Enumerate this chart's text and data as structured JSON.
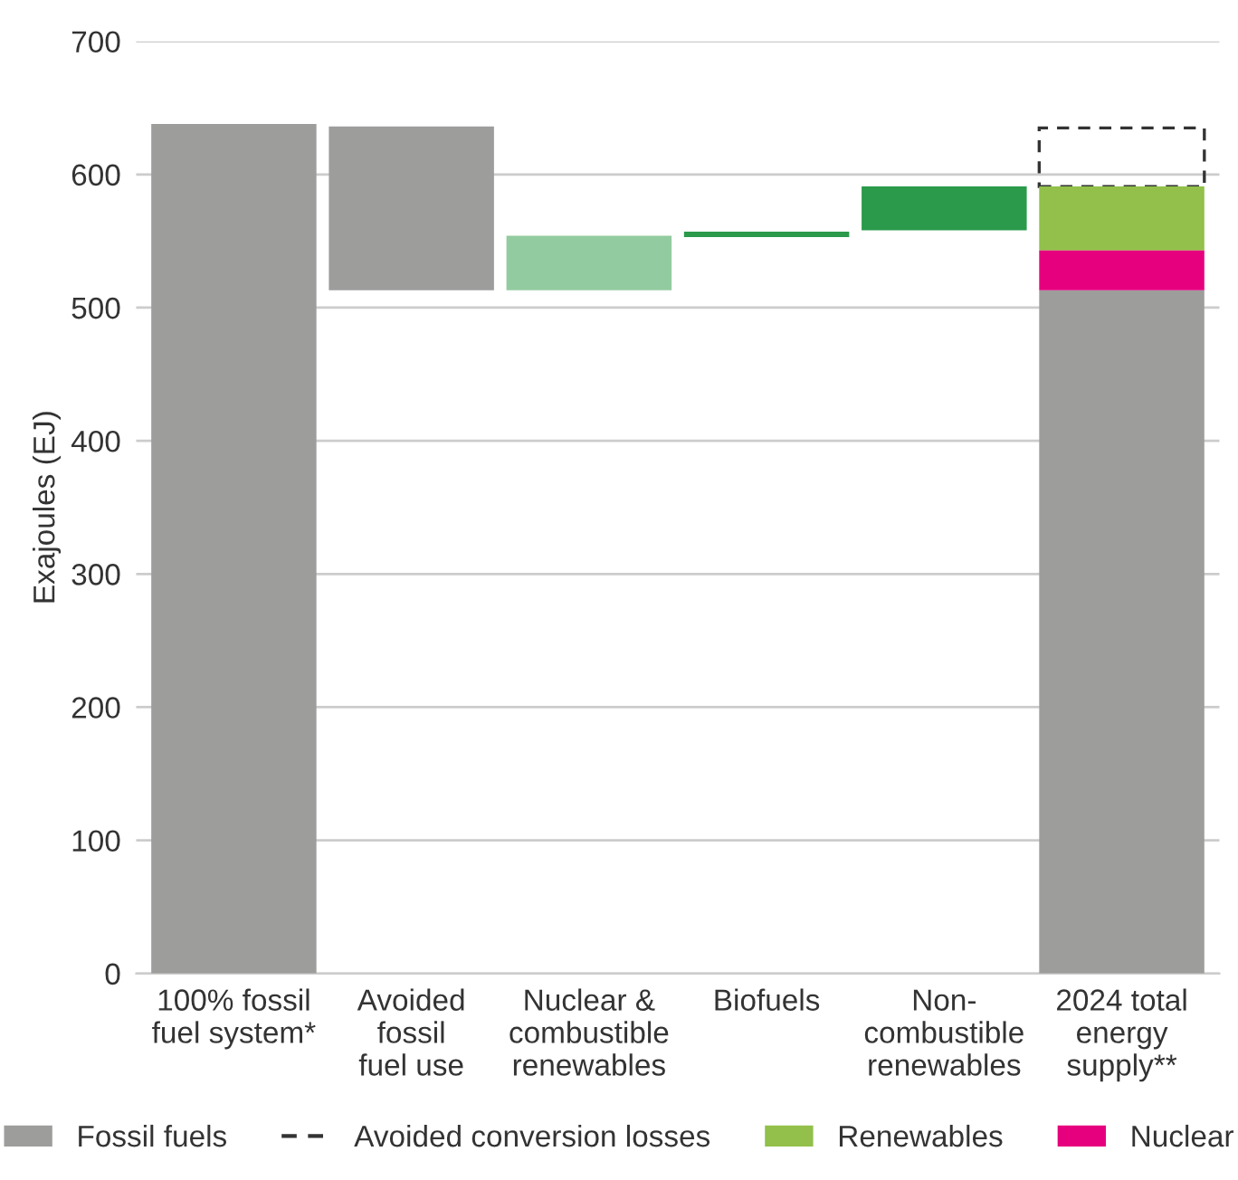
{
  "chart_data": {
    "type": "bar",
    "ylabel": "Exajoules (EJ)",
    "categories": [
      "100% fossil\nfuel system*",
      "Avoided\nfossil\nfuel use",
      "Nuclear &\ncombustible\nrenewables",
      "Biofuels",
      "Non-\ncombustible\nrenewables",
      "2024 total\nenergy\nsupply**"
    ],
    "series": [
      {
        "name": "Fossil fuels",
        "color": "#9d9d9c",
        "values": [
          638,
          123,
          null,
          null,
          null,
          513
        ],
        "base": [
          0,
          513,
          null,
          null,
          null,
          0
        ]
      },
      {
        "name": "Avoided conversion losses",
        "color": "#333333",
        "line_style": "dashed",
        "values": [
          null,
          null,
          null,
          null,
          null,
          44
        ],
        "base": [
          null,
          null,
          null,
          null,
          null,
          591
        ]
      },
      {
        "name": "Renewables",
        "color": "#92c04a",
        "values": [
          null,
          null,
          null,
          null,
          null,
          48
        ],
        "base": [
          null,
          null,
          null,
          null,
          null,
          543
        ]
      },
      {
        "name": "Nuclear",
        "color": "#e6007e",
        "values": [
          null,
          null,
          null,
          null,
          null,
          30
        ],
        "base": [
          null,
          null,
          null,
          null,
          null,
          513
        ]
      },
      {
        "color": "#93cba0",
        "values": [
          null,
          null,
          41,
          null,
          null,
          null
        ],
        "base": [
          null,
          null,
          513,
          null,
          null,
          null
        ]
      },
      {
        "color": "#2b9a4a",
        "values": [
          null,
          null,
          null,
          4,
          33,
          null
        ],
        "base": [
          null,
          null,
          null,
          553,
          558,
          null
        ]
      }
    ],
    "ylim": [
      0,
      700
    ],
    "yticks": [
      0,
      100,
      200,
      300,
      400,
      500,
      600,
      700
    ],
    "grid": "y",
    "legend": "bottom"
  }
}
